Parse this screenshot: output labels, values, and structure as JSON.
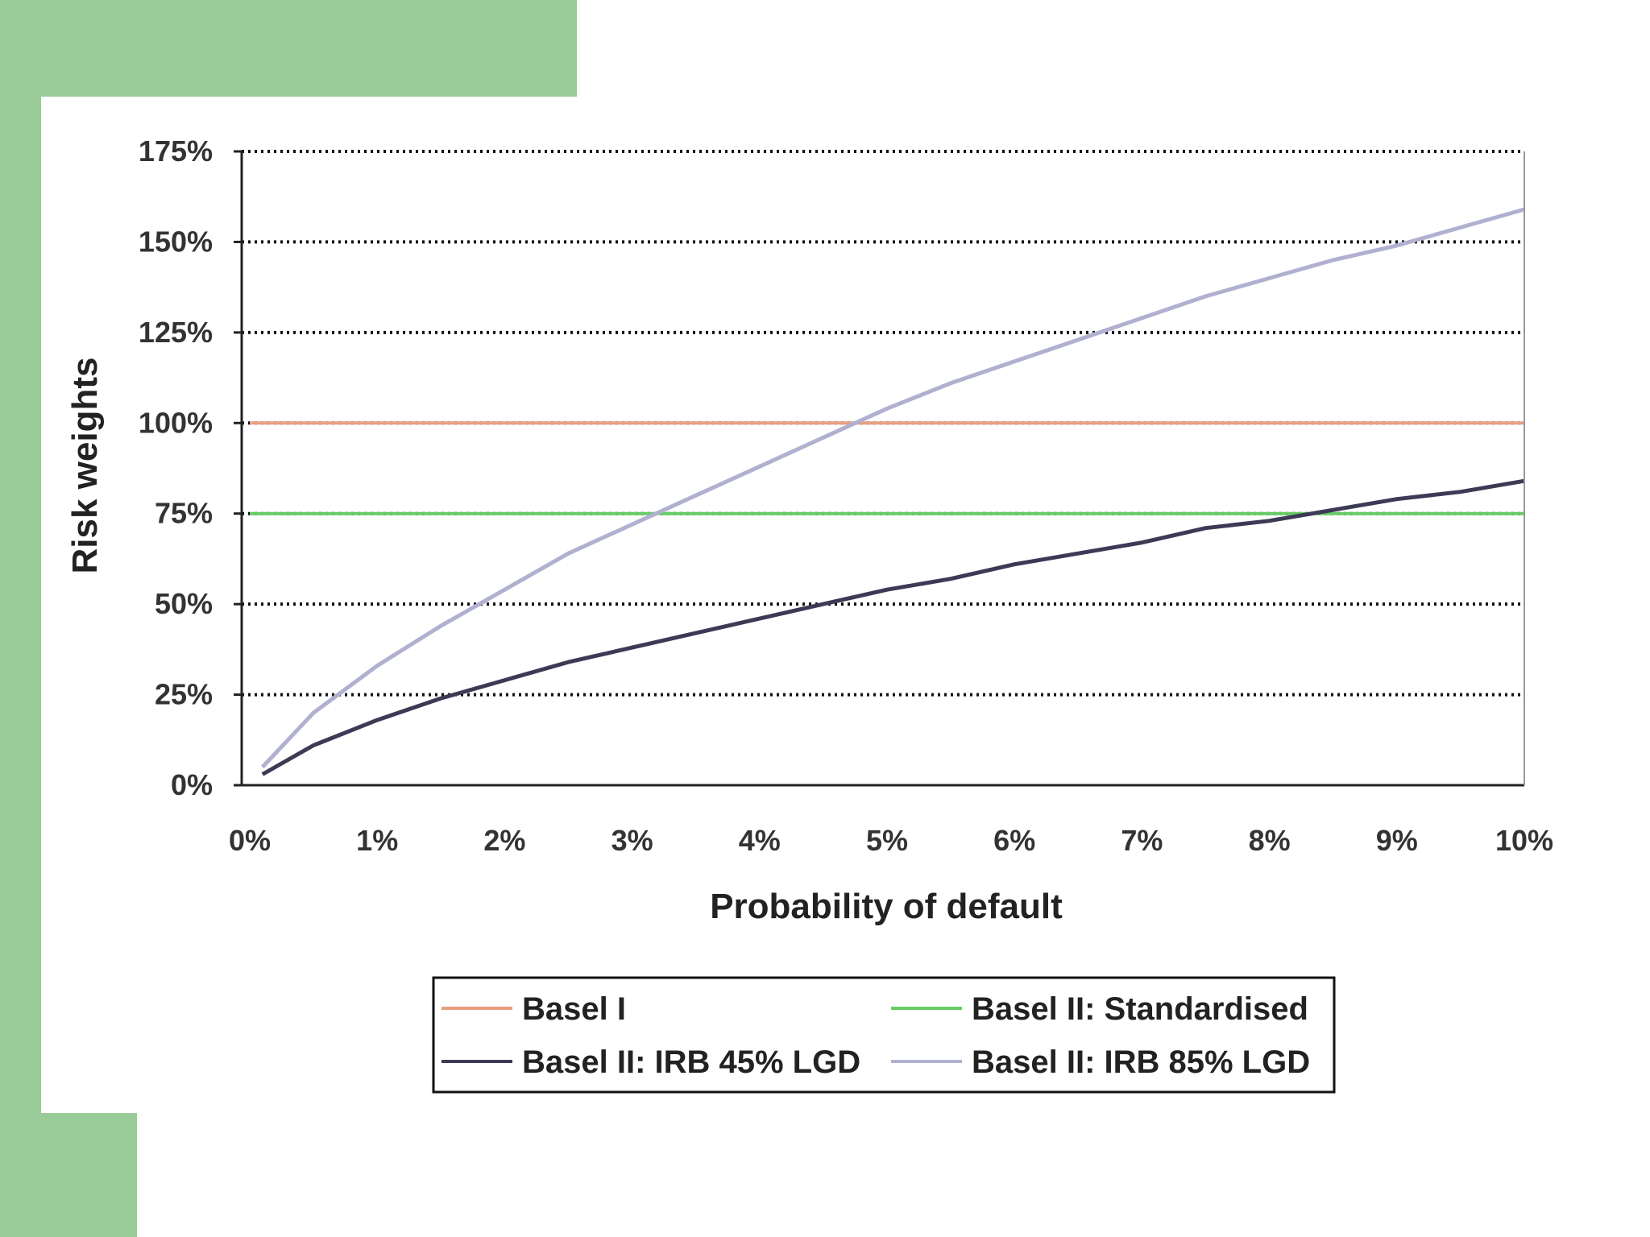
{
  "chart_data": {
    "type": "line",
    "title": "",
    "xlabel": "Probability of default",
    "ylabel": "Risk weights",
    "x_tick_labels": [
      "0%",
      "1%",
      "2%",
      "3%",
      "4%",
      "5%",
      "6%",
      "7%",
      "8%",
      "9%",
      "10%"
    ],
    "y_tick_labels": [
      "0%",
      "25%",
      "50%",
      "75%",
      "100%",
      "125%",
      "150%",
      "175%"
    ],
    "xlim": [
      0,
      10
    ],
    "ylim": [
      0,
      175
    ],
    "x_unit": "percent",
    "y_unit": "percent",
    "grid": "horizontal dotted",
    "legend_position": "bottom",
    "series": [
      {
        "name": "Basel I",
        "color": "#e8a080",
        "x": [
          0,
          10
        ],
        "y": [
          100,
          100
        ]
      },
      {
        "name": "Basel II: Standardised",
        "color": "#66cc66",
        "x": [
          0,
          10
        ],
        "y": [
          75,
          75
        ]
      },
      {
        "name": "Basel II: IRB 45% LGD",
        "color": "#3d3a55",
        "x": [
          0.1,
          0.5,
          1,
          1.5,
          2,
          2.5,
          3,
          3.5,
          4,
          4.5,
          5,
          5.5,
          6,
          6.5,
          7,
          7.5,
          8,
          8.5,
          9,
          9.5,
          10
        ],
        "y": [
          3,
          11,
          18,
          24,
          29,
          34,
          38,
          42,
          46,
          50,
          54,
          57,
          61,
          64,
          67,
          71,
          73,
          76,
          79,
          81,
          84
        ]
      },
      {
        "name": "Basel II: IRB 85% LGD",
        "color": "#b0b0d0",
        "x": [
          0.1,
          0.5,
          1,
          1.5,
          2,
          2.5,
          3,
          3.5,
          4,
          4.5,
          5,
          5.5,
          6,
          6.5,
          7,
          7.5,
          8,
          8.5,
          9,
          9.5,
          10
        ],
        "y": [
          5,
          20,
          33,
          44,
          54,
          64,
          72,
          80,
          88,
          96,
          104,
          111,
          117,
          123,
          129,
          135,
          140,
          145,
          149,
          154,
          159
        ]
      }
    ]
  }
}
